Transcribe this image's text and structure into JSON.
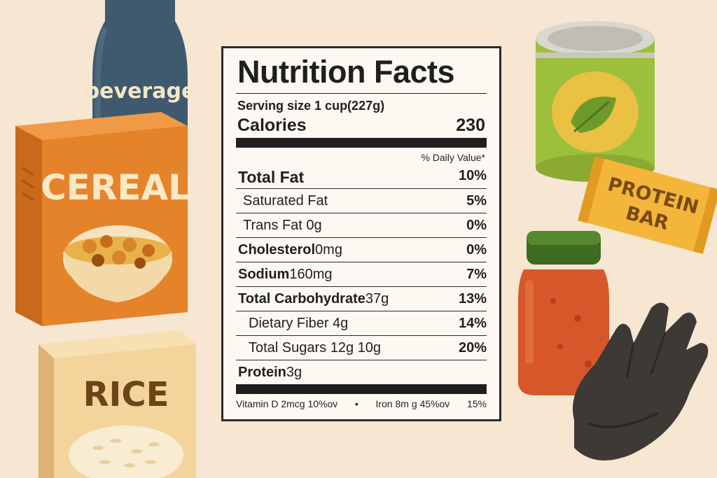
{
  "label": {
    "title": "Nutrition Facts",
    "serving": "Serving size 1 cup(227g)",
    "calories_label": "Calories",
    "calories_value": "230",
    "daily_value_header": "% Daily Value*",
    "rows": [
      {
        "name": "Total Fat",
        "amount": "",
        "pct": "10%",
        "bold": true,
        "indent": 0
      },
      {
        "name": "Saturated Fat",
        "amount": "",
        "pct": "5%",
        "bold": false,
        "indent": 1
      },
      {
        "name": "Trans Fat 0g",
        "amount": "",
        "pct": "0%",
        "bold": false,
        "indent": 1
      },
      {
        "name": "Cholesterol",
        "amount": "0mg",
        "pct": "0%",
        "bold": true,
        "indent": 0
      },
      {
        "name": "Sodium",
        "amount": "160mg",
        "pct": "7%",
        "bold": true,
        "indent": 0
      },
      {
        "name": "Total Carbohydrate",
        "amount": "37g",
        "pct": "13%",
        "bold": true,
        "indent": 0
      },
      {
        "name": "Dietary Fiber 4g",
        "amount": "",
        "pct": "14%",
        "bold": false,
        "indent": 2
      },
      {
        "name": "Total Sugars 12g 10g",
        "amount": "",
        "pct": "20%",
        "bold": false,
        "indent": 2
      },
      {
        "name": "Protein",
        "amount": "3g",
        "pct": "",
        "bold": true,
        "indent": 0
      }
    ],
    "vitamins": {
      "vitamin_d": "Vitamin D 2mcg 10%ov",
      "separator": "•",
      "iron": "Iron 8m g 45%ov",
      "extra": "15%"
    }
  },
  "products": {
    "bottle": "beverage",
    "cereal": "CEREAL",
    "rice": "RICE",
    "protein_bar_line1": "PROTEIN",
    "protein_bar_line2": "BAR"
  },
  "colors": {
    "background": "#f6e6d2",
    "bottle": "#3f5a6e",
    "cereal_box": "#e4832a",
    "rice_box": "#f3d49a",
    "can": "#9cbf3c",
    "protein_bar": "#f3b63a",
    "jar": "#d8572a",
    "glove": "#3d3a36"
  }
}
